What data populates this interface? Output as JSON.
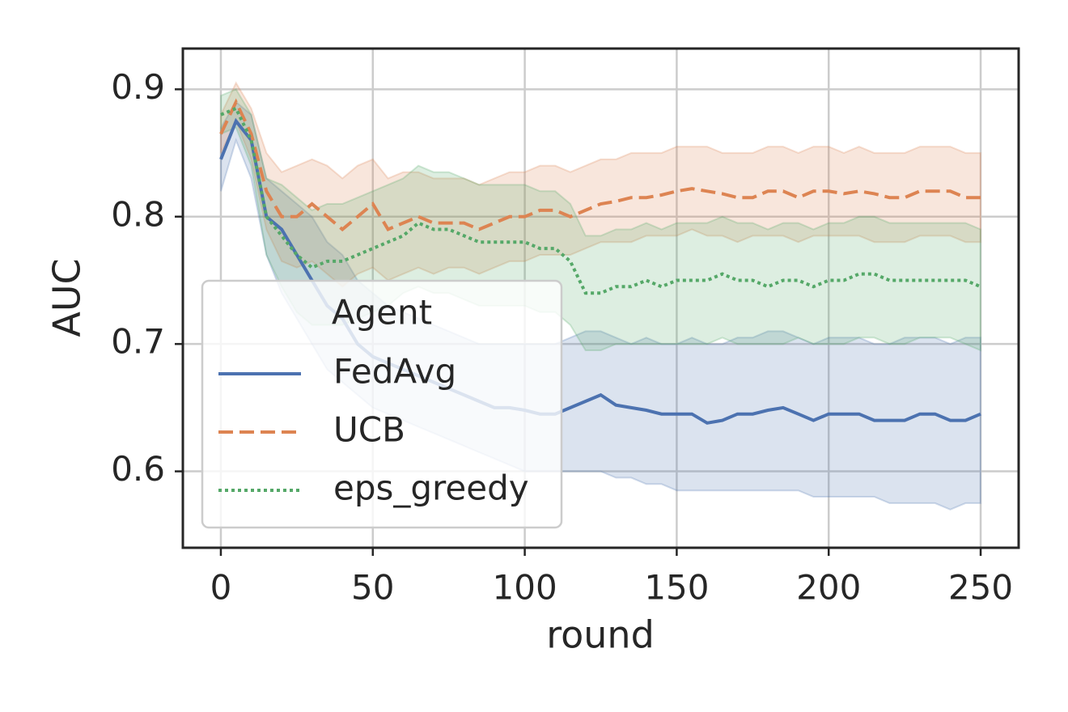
{
  "chart_data": {
    "type": "line",
    "xlabel": "round",
    "ylabel": "AUC",
    "legend_title": "Agent",
    "legend_loc": "lower left",
    "grid": true,
    "xlim": [
      -12.5,
      262.5
    ],
    "ylim": [
      0.54,
      0.932
    ],
    "xticks": [
      0,
      50,
      100,
      150,
      200,
      250
    ],
    "yticks": [
      0.6,
      0.7,
      0.8,
      0.9
    ],
    "x": [
      0,
      5,
      10,
      15,
      20,
      25,
      30,
      35,
      40,
      45,
      50,
      55,
      60,
      65,
      70,
      75,
      80,
      85,
      90,
      95,
      100,
      105,
      110,
      115,
      120,
      125,
      130,
      135,
      140,
      145,
      150,
      155,
      160,
      165,
      170,
      175,
      180,
      185,
      190,
      195,
      200,
      205,
      210,
      215,
      220,
      225,
      230,
      235,
      240,
      245,
      250
    ],
    "series": [
      {
        "name": "FedAvg",
        "color": "#4c72b0",
        "style": "solid",
        "values": [
          0.845,
          0.875,
          0.86,
          0.8,
          0.79,
          0.77,
          0.75,
          0.73,
          0.72,
          0.7,
          0.69,
          0.685,
          0.68,
          0.675,
          0.67,
          0.665,
          0.66,
          0.655,
          0.65,
          0.65,
          0.648,
          0.645,
          0.645,
          0.65,
          0.655,
          0.66,
          0.652,
          0.65,
          0.648,
          0.645,
          0.645,
          0.645,
          0.638,
          0.64,
          0.645,
          0.645,
          0.648,
          0.65,
          0.645,
          0.64,
          0.645,
          0.645,
          0.645,
          0.64,
          0.64,
          0.64,
          0.645,
          0.645,
          0.64,
          0.64,
          0.645
        ],
        "lower": [
          0.82,
          0.86,
          0.83,
          0.77,
          0.74,
          0.72,
          0.7,
          0.68,
          0.67,
          0.66,
          0.65,
          0.645,
          0.64,
          0.635,
          0.63,
          0.625,
          0.62,
          0.615,
          0.61,
          0.605,
          0.6,
          0.6,
          0.6,
          0.6,
          0.6,
          0.6,
          0.595,
          0.595,
          0.59,
          0.59,
          0.585,
          0.585,
          0.585,
          0.585,
          0.585,
          0.585,
          0.585,
          0.585,
          0.585,
          0.58,
          0.58,
          0.58,
          0.58,
          0.58,
          0.575,
          0.575,
          0.575,
          0.575,
          0.57,
          0.575,
          0.575
        ],
        "upper": [
          0.87,
          0.89,
          0.88,
          0.83,
          0.82,
          0.81,
          0.8,
          0.78,
          0.77,
          0.75,
          0.74,
          0.73,
          0.725,
          0.72,
          0.715,
          0.71,
          0.705,
          0.7,
          0.7,
          0.7,
          0.7,
          0.7,
          0.7,
          0.705,
          0.71,
          0.71,
          0.705,
          0.7,
          0.705,
          0.7,
          0.7,
          0.705,
          0.7,
          0.7,
          0.705,
          0.705,
          0.71,
          0.71,
          0.705,
          0.7,
          0.705,
          0.705,
          0.705,
          0.7,
          0.7,
          0.705,
          0.705,
          0.705,
          0.7,
          0.705,
          0.705
        ]
      },
      {
        "name": "UCB",
        "color": "#dd8452",
        "style": "dashed",
        "values": [
          0.865,
          0.89,
          0.865,
          0.82,
          0.8,
          0.8,
          0.81,
          0.8,
          0.79,
          0.8,
          0.81,
          0.79,
          0.795,
          0.8,
          0.795,
          0.795,
          0.795,
          0.79,
          0.795,
          0.8,
          0.8,
          0.805,
          0.805,
          0.8,
          0.805,
          0.81,
          0.812,
          0.815,
          0.815,
          0.817,
          0.82,
          0.822,
          0.82,
          0.818,
          0.815,
          0.815,
          0.82,
          0.82,
          0.815,
          0.82,
          0.82,
          0.818,
          0.82,
          0.818,
          0.815,
          0.815,
          0.82,
          0.82,
          0.82,
          0.815,
          0.815
        ],
        "lower": [
          0.85,
          0.875,
          0.845,
          0.79,
          0.765,
          0.76,
          0.765,
          0.755,
          0.745,
          0.755,
          0.76,
          0.75,
          0.755,
          0.76,
          0.755,
          0.76,
          0.76,
          0.755,
          0.76,
          0.765,
          0.765,
          0.77,
          0.77,
          0.77,
          0.775,
          0.78,
          0.78,
          0.78,
          0.785,
          0.785,
          0.785,
          0.79,
          0.785,
          0.785,
          0.78,
          0.785,
          0.785,
          0.785,
          0.78,
          0.785,
          0.785,
          0.785,
          0.785,
          0.78,
          0.78,
          0.78,
          0.785,
          0.785,
          0.785,
          0.78,
          0.78
        ],
        "upper": [
          0.88,
          0.905,
          0.885,
          0.85,
          0.835,
          0.84,
          0.845,
          0.84,
          0.83,
          0.84,
          0.845,
          0.83,
          0.835,
          0.835,
          0.83,
          0.83,
          0.83,
          0.825,
          0.83,
          0.835,
          0.835,
          0.84,
          0.84,
          0.835,
          0.84,
          0.845,
          0.845,
          0.85,
          0.85,
          0.85,
          0.855,
          0.855,
          0.855,
          0.85,
          0.85,
          0.85,
          0.855,
          0.855,
          0.85,
          0.855,
          0.855,
          0.85,
          0.855,
          0.85,
          0.85,
          0.85,
          0.855,
          0.855,
          0.855,
          0.85,
          0.85
        ]
      },
      {
        "name": "eps_greedy",
        "color": "#55a868",
        "style": "dotted",
        "values": [
          0.88,
          0.885,
          0.86,
          0.8,
          0.785,
          0.77,
          0.76,
          0.765,
          0.765,
          0.77,
          0.775,
          0.78,
          0.785,
          0.795,
          0.79,
          0.79,
          0.785,
          0.78,
          0.78,
          0.78,
          0.78,
          0.775,
          0.775,
          0.765,
          0.74,
          0.74,
          0.745,
          0.745,
          0.75,
          0.745,
          0.75,
          0.75,
          0.75,
          0.755,
          0.75,
          0.75,
          0.745,
          0.75,
          0.75,
          0.745,
          0.75,
          0.75,
          0.755,
          0.755,
          0.75,
          0.75,
          0.75,
          0.75,
          0.75,
          0.75,
          0.745
        ],
        "lower": [
          0.865,
          0.87,
          0.84,
          0.77,
          0.745,
          0.725,
          0.715,
          0.715,
          0.715,
          0.72,
          0.725,
          0.73,
          0.74,
          0.745,
          0.74,
          0.74,
          0.735,
          0.73,
          0.73,
          0.73,
          0.73,
          0.725,
          0.725,
          0.715,
          0.695,
          0.695,
          0.7,
          0.7,
          0.7,
          0.7,
          0.7,
          0.7,
          0.7,
          0.705,
          0.7,
          0.7,
          0.7,
          0.7,
          0.705,
          0.7,
          0.7,
          0.7,
          0.705,
          0.705,
          0.7,
          0.7,
          0.705,
          0.705,
          0.705,
          0.7,
          0.695
        ],
        "upper": [
          0.895,
          0.9,
          0.88,
          0.83,
          0.825,
          0.815,
          0.805,
          0.81,
          0.81,
          0.815,
          0.82,
          0.825,
          0.83,
          0.84,
          0.835,
          0.835,
          0.83,
          0.825,
          0.825,
          0.825,
          0.825,
          0.82,
          0.82,
          0.81,
          0.785,
          0.785,
          0.79,
          0.79,
          0.795,
          0.79,
          0.795,
          0.795,
          0.795,
          0.8,
          0.795,
          0.795,
          0.79,
          0.795,
          0.795,
          0.79,
          0.795,
          0.795,
          0.8,
          0.8,
          0.795,
          0.795,
          0.795,
          0.795,
          0.795,
          0.795,
          0.79
        ]
      }
    ]
  }
}
